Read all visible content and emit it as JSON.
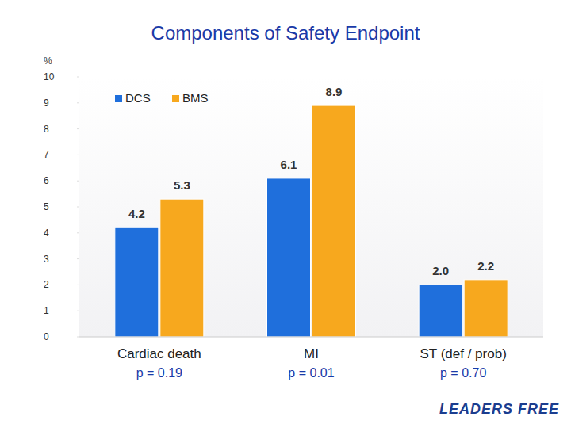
{
  "chart_data": {
    "type": "bar",
    "title": "Components of Safety Endpoint",
    "y_label": "%",
    "categories": [
      "Cardiac death",
      "MI",
      "ST (def / prob)"
    ],
    "category_notes": [
      "p = 0.19",
      "p = 0.01",
      "p = 0.70"
    ],
    "series": [
      {
        "name": "DCS",
        "color": "#1f6fdc",
        "values": [
          4.2,
          6.1,
          2.0
        ],
        "value_labels": [
          "4.2",
          "6.1",
          "2.0"
        ]
      },
      {
        "name": "BMS",
        "color": "#f7a81e",
        "values": [
          5.3,
          8.9,
          2.2
        ],
        "value_labels": [
          "5.3",
          "8.9",
          "2.2"
        ]
      }
    ],
    "ylim": [
      0,
      10
    ],
    "yticks": [
      0,
      1,
      2,
      3,
      4,
      5,
      6,
      7,
      8,
      9,
      10
    ],
    "grid": false,
    "legend": "top-left",
    "data_labels": true,
    "annotations": [
      "LEADERS FREE"
    ]
  }
}
